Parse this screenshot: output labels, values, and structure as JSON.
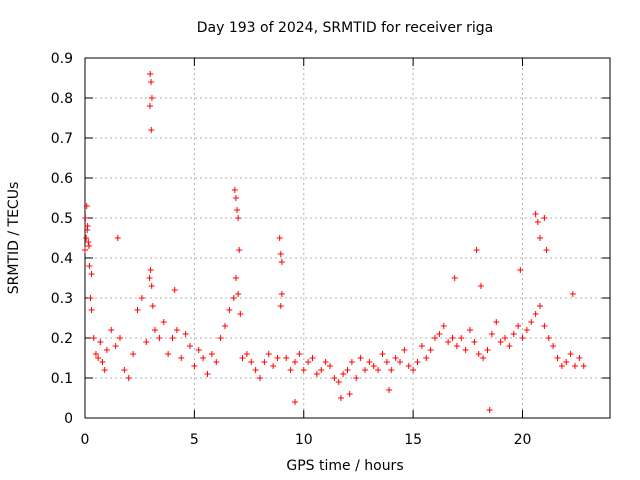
{
  "chart_data": {
    "type": "scatter",
    "title": "Day 193 of 2024, SRMTID for receiver riga",
    "xlabel": "GPS time / hours",
    "ylabel": "SRMTID / TECUs",
    "xlim": [
      0,
      24
    ],
    "ylim": [
      0,
      0.9
    ],
    "xticks": [
      0,
      5,
      10,
      15,
      20
    ],
    "xtick_labels": [
      "0",
      "5",
      "10",
      "15",
      "20"
    ],
    "yticks": [
      0,
      0.1,
      0.2,
      0.3,
      0.4,
      0.5,
      0.6,
      0.7,
      0.8,
      0.9
    ],
    "ytick_labels": [
      "0",
      "0.1",
      "0.2",
      "0.3",
      "0.4",
      "0.5",
      "0.6",
      "0.7",
      "0.8",
      "0.9"
    ],
    "grid": true,
    "marker": "+",
    "color": "#ff0000",
    "series": [
      {
        "name": "SRMTID",
        "x": [
          0.0,
          0.05,
          0.1,
          0.15,
          0.2,
          0.25,
          0.3,
          0.4,
          0.5,
          0.6,
          0.7,
          0.8,
          0.9,
          1.0,
          1.2,
          1.4,
          1.6,
          1.8,
          2.0,
          2.2,
          2.4,
          2.6,
          2.8,
          2.95,
          3.0,
          3.05,
          3.1,
          3.2,
          3.4,
          3.6,
          3.8,
          4.0,
          4.2,
          4.4,
          4.6,
          4.8,
          5.0,
          5.2,
          5.4,
          5.6,
          5.8,
          6.0,
          6.2,
          6.4,
          6.6,
          6.8,
          6.9,
          7.0,
          7.1,
          7.2,
          7.4,
          7.6,
          7.8,
          8.0,
          8.2,
          8.4,
          8.6,
          8.8,
          8.95,
          9.0,
          9.2,
          9.4,
          9.6,
          9.8,
          10.0,
          10.2,
          10.4,
          10.6,
          10.8,
          11.0,
          11.2,
          11.4,
          11.6,
          11.8,
          12.0,
          12.2,
          12.4,
          12.6,
          12.8,
          13.0,
          13.2,
          13.4,
          13.6,
          13.8,
          14.0,
          14.2,
          14.4,
          14.6,
          14.8,
          15.0,
          15.2,
          15.4,
          15.6,
          15.8,
          16.0,
          16.2,
          16.4,
          16.6,
          16.8,
          17.0,
          17.2,
          17.4,
          17.6,
          17.8,
          18.0,
          18.2,
          18.4,
          18.6,
          18.8,
          19.0,
          19.2,
          19.4,
          19.6,
          19.8,
          20.0,
          20.2,
          20.4,
          20.6,
          20.8,
          21.0,
          21.2,
          21.4,
          21.6,
          21.8,
          22.0,
          22.2,
          22.4,
          22.6,
          22.8,
          0.02,
          0.08,
          0.12,
          0.18,
          0.3,
          2.98,
          3.02,
          3.06,
          2.97,
          3.03,
          6.85,
          6.9,
          6.95,
          7.0,
          7.05,
          8.9,
          8.95,
          9.0,
          18.5,
          20.6,
          20.7,
          20.8,
          21.0,
          21.1,
          1.5,
          4.1,
          9.6,
          11.7,
          12.1,
          13.9,
          16.9,
          17.9,
          18.1,
          19.9,
          22.3
        ],
        "y": [
          0.42,
          0.45,
          0.47,
          0.44,
          0.38,
          0.3,
          0.27,
          0.2,
          0.16,
          0.15,
          0.19,
          0.14,
          0.12,
          0.17,
          0.22,
          0.18,
          0.2,
          0.12,
          0.1,
          0.16,
          0.27,
          0.3,
          0.19,
          0.35,
          0.37,
          0.33,
          0.28,
          0.22,
          0.2,
          0.24,
          0.16,
          0.2,
          0.22,
          0.15,
          0.21,
          0.18,
          0.13,
          0.17,
          0.15,
          0.11,
          0.16,
          0.14,
          0.2,
          0.23,
          0.27,
          0.3,
          0.35,
          0.31,
          0.26,
          0.15,
          0.16,
          0.14,
          0.12,
          0.1,
          0.14,
          0.16,
          0.13,
          0.15,
          0.28,
          0.31,
          0.15,
          0.12,
          0.14,
          0.16,
          0.12,
          0.14,
          0.15,
          0.11,
          0.12,
          0.14,
          0.13,
          0.1,
          0.09,
          0.11,
          0.12,
          0.14,
          0.1,
          0.15,
          0.12,
          0.14,
          0.13,
          0.12,
          0.16,
          0.14,
          0.12,
          0.15,
          0.14,
          0.17,
          0.13,
          0.12,
          0.14,
          0.18,
          0.15,
          0.17,
          0.2,
          0.21,
          0.23,
          0.19,
          0.2,
          0.18,
          0.2,
          0.17,
          0.22,
          0.19,
          0.16,
          0.15,
          0.17,
          0.21,
          0.24,
          0.19,
          0.2,
          0.18,
          0.21,
          0.23,
          0.2,
          0.22,
          0.24,
          0.26,
          0.28,
          0.23,
          0.2,
          0.18,
          0.15,
          0.13,
          0.14,
          0.16,
          0.13,
          0.15,
          0.13,
          0.5,
          0.53,
          0.48,
          0.43,
          0.36,
          0.86,
          0.84,
          0.8,
          0.78,
          0.72,
          0.57,
          0.55,
          0.52,
          0.5,
          0.42,
          0.45,
          0.41,
          0.39,
          0.02,
          0.51,
          0.49,
          0.45,
          0.5,
          0.42,
          0.45,
          0.32,
          0.04,
          0.05,
          0.06,
          0.07,
          0.35,
          0.42,
          0.33,
          0.37,
          0.31
        ]
      }
    ]
  }
}
